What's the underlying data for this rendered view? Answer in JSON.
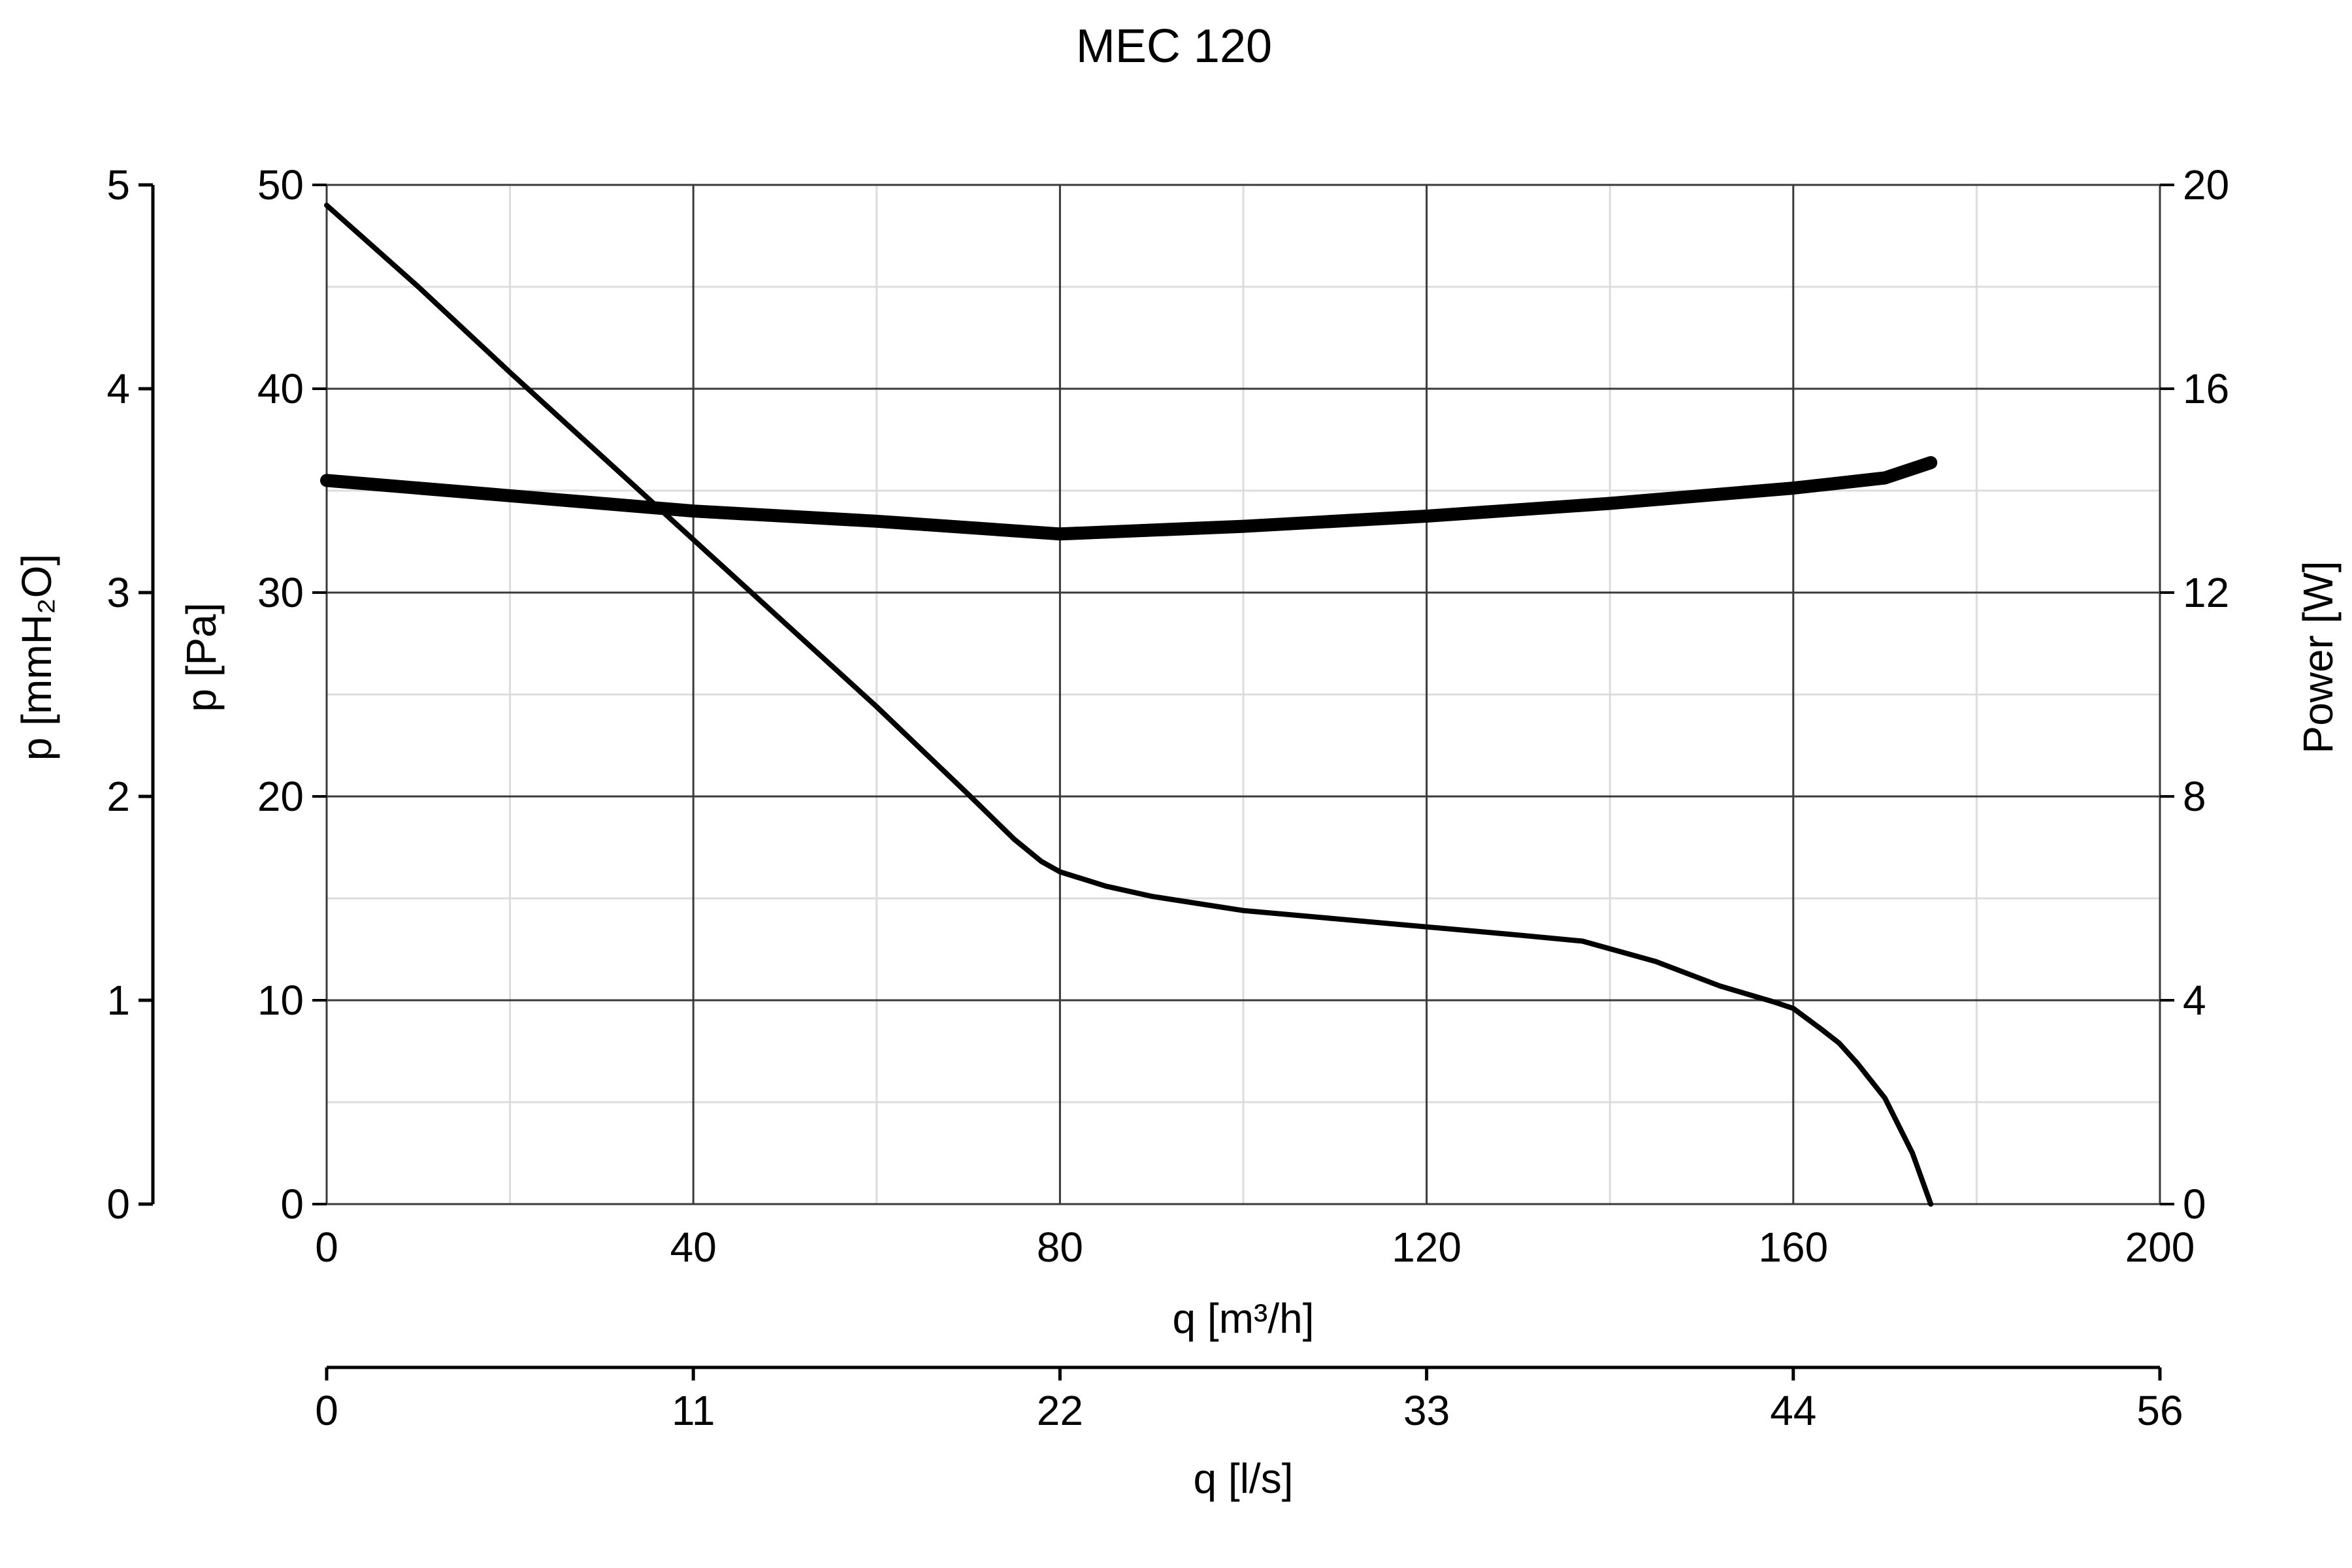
{
  "chart_data": {
    "type": "line",
    "title": "MEC 120",
    "xlabel": "q [m³/h]",
    "xlabel_secondary": "q [l/s]",
    "ylabel": "p [Pa]",
    "ylabel_secondary": "p [mmH₂O]",
    "ylabel_right": "Power [W]",
    "xlim": [
      0,
      200
    ],
    "ylim": [
      0,
      50
    ],
    "ylim_secondary": [
      0,
      5
    ],
    "ylim_right": [
      0,
      20
    ],
    "grid": true,
    "x_ticks": [
      "0",
      "40",
      "80",
      "120",
      "160",
      "200"
    ],
    "x_ticks_secondary": [
      "0",
      "11",
      "22",
      "33",
      "44",
      "56"
    ],
    "y_ticks": [
      "0",
      "10",
      "20",
      "30",
      "40",
      "50"
    ],
    "y_ticks_secondary": [
      "0",
      "1",
      "2",
      "3",
      "4",
      "5"
    ],
    "y_ticks_right": [
      "0",
      "4",
      "8",
      "12",
      "16",
      "20"
    ],
    "series": [
      {
        "axis": "left",
        "x": [
          0,
          10,
          20,
          30,
          40,
          50,
          60,
          70,
          75,
          78,
          80,
          85,
          90,
          100,
          110,
          120,
          130,
          137,
          145,
          152,
          158,
          160,
          163,
          165,
          167,
          170,
          173,
          175
        ],
        "y": [
          49.0,
          45.0,
          40.8,
          36.7,
          32.6,
          28.5,
          24.4,
          20.1,
          17.9,
          16.8,
          16.3,
          15.6,
          15.1,
          14.4,
          14.0,
          13.6,
          13.2,
          12.9,
          11.9,
          10.7,
          9.9,
          9.6,
          8.6,
          7.9,
          6.9,
          5.2,
          2.5,
          0
        ]
      },
      {
        "axis": "right",
        "x": [
          0,
          20,
          40,
          60,
          80,
          100,
          120,
          140,
          160,
          170,
          175
        ],
        "y": [
          14.2,
          13.9,
          13.6,
          13.4,
          13.15,
          13.3,
          13.5,
          13.75,
          14.05,
          14.25,
          14.55
        ]
      }
    ]
  }
}
